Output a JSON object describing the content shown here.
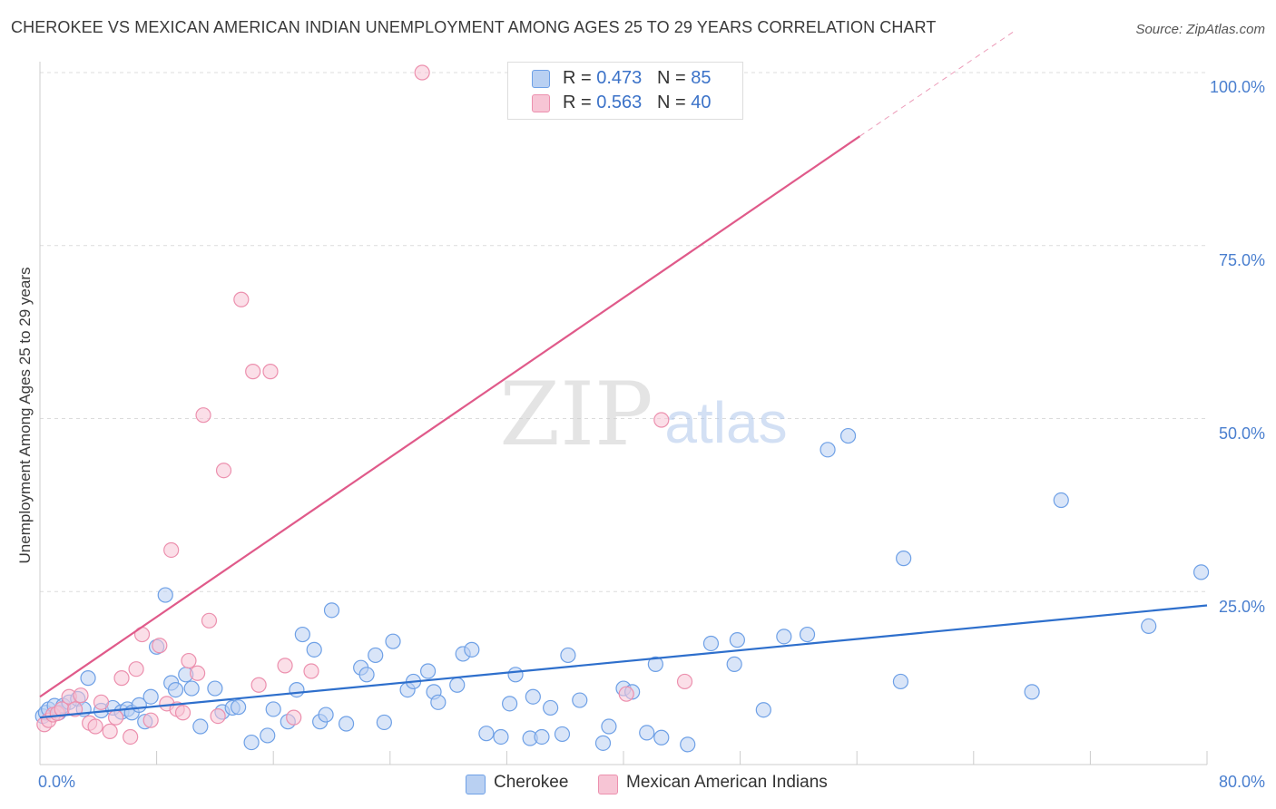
{
  "chart_data": {
    "type": "scatter",
    "title": "CHEROKEE VS MEXICAN AMERICAN INDIAN UNEMPLOYMENT AMONG AGES 25 TO 29 YEARS CORRELATION CHART",
    "source": "Source: ZipAtlas.com",
    "xlabel": "",
    "ylabel": "Unemployment Among Ages 25 to 29 years",
    "xlim": [
      0,
      80
    ],
    "ylim": [
      0,
      100
    ],
    "x_tick_labels": [
      "0.0%",
      "80.0%"
    ],
    "y_tick_labels": [
      "100.0%",
      "75.0%",
      "50.0%",
      "25.0%"
    ],
    "y_ticks": [
      100,
      75,
      50,
      25
    ],
    "grid": true,
    "watermark": "ZIPatlas",
    "legend": {
      "entries": [
        {
          "r_label": "R =",
          "r": "0.473",
          "n_label": "N =",
          "n": "85"
        },
        {
          "r_label": "R =",
          "r": "0.563",
          "n_label": "N =",
          "n": "40"
        }
      ]
    },
    "series": [
      {
        "name": "Cherokee",
        "color": "#6ea0e6",
        "fill": "#b9d0f2",
        "trend_color": "#2e6fcc",
        "trend": {
          "x0": 0,
          "y0": 6.8,
          "x1": 80,
          "y1": 23.0
        },
        "points": [
          [
            0.2,
            7.0
          ],
          [
            0.4,
            7.5
          ],
          [
            0.6,
            8.0
          ],
          [
            1.0,
            8.5
          ],
          [
            1.3,
            7.5
          ],
          [
            1.6,
            8.5
          ],
          [
            2.0,
            9.0
          ],
          [
            2.6,
            9.5
          ],
          [
            3.0,
            8.0
          ],
          [
            3.3,
            12.5
          ],
          [
            4.2,
            7.8
          ],
          [
            5.0,
            8.2
          ],
          [
            5.6,
            7.6
          ],
          [
            6.0,
            8.0
          ],
          [
            6.3,
            7.5
          ],
          [
            6.8,
            8.6
          ],
          [
            7.2,
            6.2
          ],
          [
            7.6,
            9.8
          ],
          [
            8.0,
            17.0
          ],
          [
            8.6,
            24.5
          ],
          [
            9.0,
            11.8
          ],
          [
            9.3,
            10.8
          ],
          [
            10.0,
            13.0
          ],
          [
            10.4,
            11.0
          ],
          [
            11.0,
            5.5
          ],
          [
            12.0,
            11.0
          ],
          [
            12.5,
            7.6
          ],
          [
            13.2,
            8.2
          ],
          [
            13.6,
            8.3
          ],
          [
            14.5,
            3.2
          ],
          [
            15.6,
            4.2
          ],
          [
            16.0,
            8.0
          ],
          [
            17.0,
            6.2
          ],
          [
            17.6,
            10.8
          ],
          [
            18.0,
            18.8
          ],
          [
            18.8,
            16.6
          ],
          [
            19.2,
            6.2
          ],
          [
            19.6,
            7.2
          ],
          [
            20.0,
            22.3
          ],
          [
            21.0,
            5.9
          ],
          [
            22.0,
            14.0
          ],
          [
            22.4,
            13.0
          ],
          [
            23.0,
            15.8
          ],
          [
            23.6,
            6.1
          ],
          [
            24.2,
            17.8
          ],
          [
            25.2,
            10.8
          ],
          [
            25.6,
            12.0
          ],
          [
            26.6,
            13.5
          ],
          [
            27.0,
            10.5
          ],
          [
            27.3,
            9.0
          ],
          [
            28.6,
            11.5
          ],
          [
            29.0,
            16.0
          ],
          [
            29.6,
            16.6
          ],
          [
            30.6,
            4.5
          ],
          [
            31.6,
            4.0
          ],
          [
            32.2,
            8.8
          ],
          [
            32.6,
            13.0
          ],
          [
            33.6,
            3.8
          ],
          [
            33.8,
            9.8
          ],
          [
            34.4,
            4.0
          ],
          [
            35.0,
            8.2
          ],
          [
            35.8,
            4.4
          ],
          [
            36.2,
            15.8
          ],
          [
            37.0,
            9.3
          ],
          [
            38.6,
            3.1
          ],
          [
            39.0,
            5.5
          ],
          [
            40.0,
            11.0
          ],
          [
            40.6,
            10.5
          ],
          [
            41.6,
            4.6
          ],
          [
            42.2,
            14.5
          ],
          [
            42.6,
            3.9
          ],
          [
            44.4,
            2.9
          ],
          [
            46.0,
            17.5
          ],
          [
            47.6,
            14.5
          ],
          [
            47.8,
            18.0
          ],
          [
            49.6,
            7.9
          ],
          [
            51.0,
            18.5
          ],
          [
            52.6,
            18.8
          ],
          [
            54.0,
            45.5
          ],
          [
            55.4,
            47.5
          ],
          [
            59.0,
            12.0
          ],
          [
            59.2,
            29.8
          ],
          [
            68.0,
            10.5
          ],
          [
            70.0,
            38.2
          ],
          [
            76.0,
            20.0
          ],
          [
            79.6,
            27.8
          ]
        ]
      },
      {
        "name": "Mexican American Indians",
        "color": "#ec90ae",
        "fill": "#f7c5d5",
        "trend_color": "#e05a8a",
        "trend": {
          "x0": 0,
          "y0": 9.8,
          "x1": 56.2,
          "y1": 90.8
        },
        "trend_extension": {
          "x0": 56.2,
          "y0": 90.8,
          "x1": 66.8,
          "y1": 106.0
        },
        "points": [
          [
            0.3,
            5.8
          ],
          [
            0.6,
            6.4
          ],
          [
            0.9,
            7.2
          ],
          [
            1.2,
            7.4
          ],
          [
            1.5,
            8.0
          ],
          [
            2.0,
            9.8
          ],
          [
            2.4,
            8.0
          ],
          [
            2.8,
            10.0
          ],
          [
            3.4,
            6.0
          ],
          [
            3.8,
            5.5
          ],
          [
            4.2,
            9.0
          ],
          [
            4.8,
            4.8
          ],
          [
            5.2,
            6.8
          ],
          [
            5.6,
            12.5
          ],
          [
            6.2,
            4.0
          ],
          [
            6.6,
            13.8
          ],
          [
            7.0,
            18.8
          ],
          [
            7.6,
            6.4
          ],
          [
            8.2,
            17.2
          ],
          [
            8.7,
            8.8
          ],
          [
            9.0,
            31.0
          ],
          [
            9.4,
            8.0
          ],
          [
            9.8,
            7.5
          ],
          [
            10.2,
            15.0
          ],
          [
            10.8,
            13.2
          ],
          [
            11.2,
            50.5
          ],
          [
            11.6,
            20.8
          ],
          [
            12.2,
            7.0
          ],
          [
            12.6,
            42.5
          ],
          [
            13.8,
            67.2
          ],
          [
            14.6,
            56.8
          ],
          [
            15.0,
            11.5
          ],
          [
            15.8,
            56.8
          ],
          [
            16.8,
            14.3
          ],
          [
            17.4,
            6.8
          ],
          [
            18.6,
            13.5
          ],
          [
            26.2,
            100.0
          ],
          [
            42.6,
            49.8
          ],
          [
            40.2,
            10.2
          ],
          [
            44.2,
            12.0
          ]
        ]
      }
    ]
  }
}
